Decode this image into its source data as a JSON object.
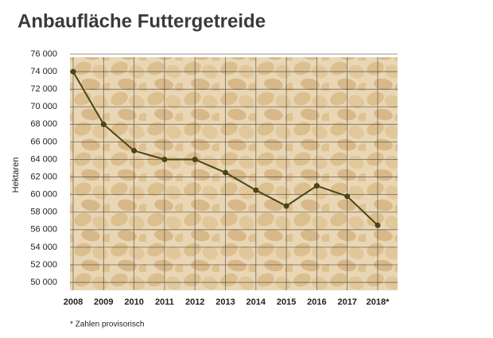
{
  "chart_data": {
    "type": "line",
    "title": "Anbaufläche Futtergetreide",
    "y_label": "Hektaren",
    "footnote": "* Zahlen provisorisch",
    "categories": [
      "2008",
      "2009",
      "2010",
      "2011",
      "2012",
      "2013",
      "2014",
      "2015",
      "2016",
      "2017",
      "2018*"
    ],
    "values": [
      74000,
      68000,
      65000,
      64000,
      64000,
      62500,
      60500,
      58700,
      61000,
      59800,
      56500
    ],
    "color": "#4a4514",
    "ylim": [
      49100,
      76000
    ],
    "yticks": [
      {
        "value": 50000,
        "label": "50 000"
      },
      {
        "value": 52000,
        "label": "52 000"
      },
      {
        "value": 54000,
        "label": "54 000"
      },
      {
        "value": 56000,
        "label": "56 000"
      },
      {
        "value": 58000,
        "label": "58 000"
      },
      {
        "value": 60000,
        "label": "60 000"
      },
      {
        "value": 62000,
        "label": "62 000"
      },
      {
        "value": 64000,
        "label": "64 000"
      },
      {
        "value": 66000,
        "label": "66 000"
      },
      {
        "value": 68000,
        "label": "68 000"
      },
      {
        "value": 70000,
        "label": "70 000"
      },
      {
        "value": 72000,
        "label": "72 000"
      },
      {
        "value": 74000,
        "label": "74 000"
      },
      {
        "value": 76000,
        "label": "76 000"
      }
    ],
    "grid": true
  }
}
